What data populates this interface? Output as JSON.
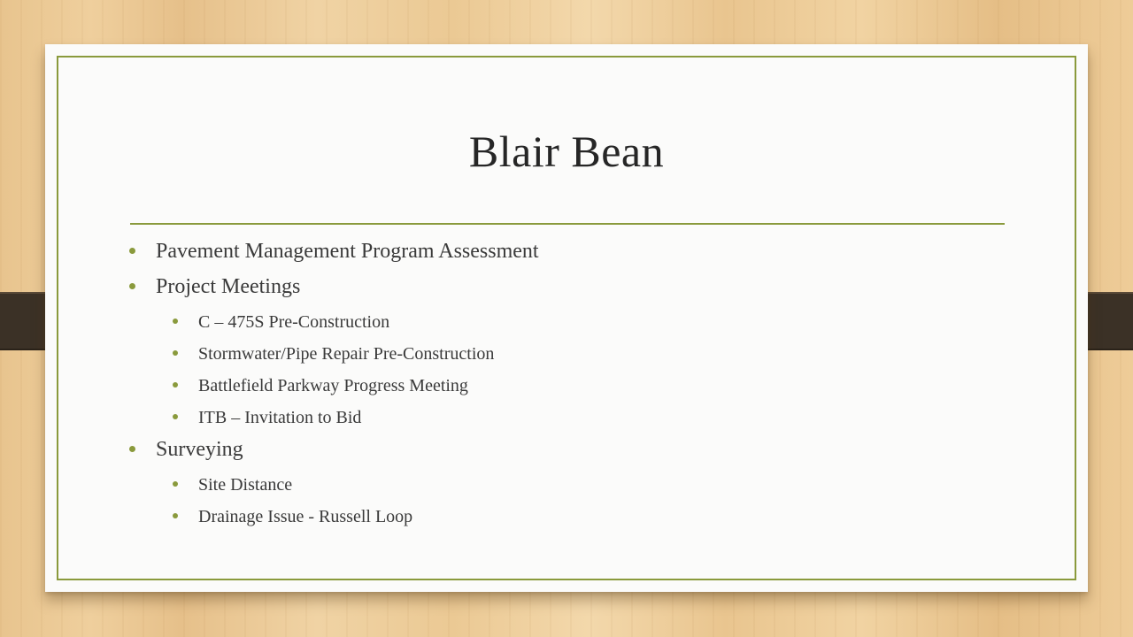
{
  "slide": {
    "title": "Blair Bean",
    "accent_color": "#8a9a3c",
    "bullets": [
      {
        "level": 1,
        "text": "Pavement Management Program Assessment"
      },
      {
        "level": 1,
        "text": "Project Meetings"
      },
      {
        "level": 2,
        "text": "C – 475S Pre-Construction"
      },
      {
        "level": 2,
        "text": "Stormwater/Pipe Repair Pre-Construction"
      },
      {
        "level": 2,
        "text": "Battlefield Parkway Progress Meeting"
      },
      {
        "level": 2,
        "text": "ITB – Invitation to Bid"
      },
      {
        "level": 1,
        "text": "Surveying"
      },
      {
        "level": 2,
        "text": "Site Distance"
      },
      {
        "level": 2,
        "text": "Drainage Issue - Russell Loop"
      }
    ]
  }
}
